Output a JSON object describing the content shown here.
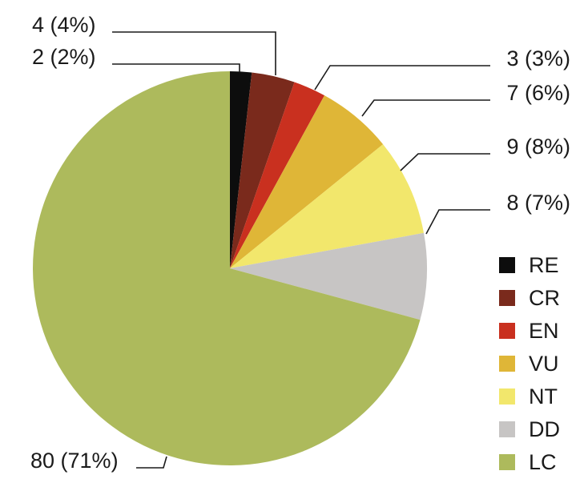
{
  "chart_data": {
    "type": "pie",
    "start": "12 o'clock",
    "direction": "clockwise",
    "legend_position": "right",
    "slices": [
      {
        "category": "RE",
        "value": 2,
        "label": "2 (2%)",
        "color": "#0d0d0d"
      },
      {
        "category": "CR",
        "value": 4,
        "label": "4 (4%)",
        "color": "#7a2a1c"
      },
      {
        "category": "EN",
        "value": 3,
        "label": "3 (3%)",
        "color": "#c9301f"
      },
      {
        "category": "VU",
        "value": 7,
        "label": "7 (6%)",
        "color": "#dfb637"
      },
      {
        "category": "NT",
        "value": 9,
        "label": "9 (8%)",
        "color": "#f2e76c"
      },
      {
        "category": "DD",
        "value": 8,
        "label": "8 (7%)",
        "color": "#c7c5c4"
      },
      {
        "category": "LC",
        "value": 80,
        "label": "80 (71%)",
        "color": "#adba5c"
      }
    ]
  }
}
